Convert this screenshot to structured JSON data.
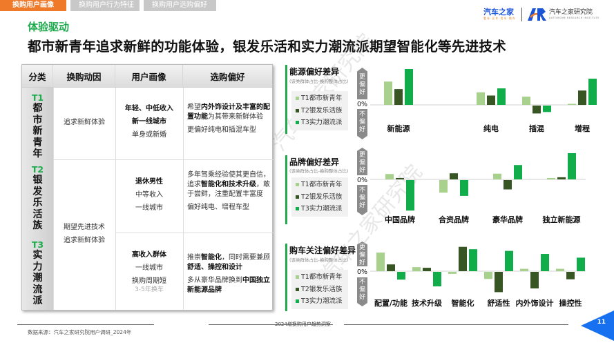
{
  "tabs": [
    {
      "label": "换购用户画像",
      "active": true
    },
    {
      "label": "换购用户行为特征",
      "active": false
    },
    {
      "label": "换购用户选购偏好",
      "active": false
    }
  ],
  "logos": {
    "autohome": {
      "main": "汽车之家",
      "sub": "看车·买车·用车·换车"
    },
    "institute": {
      "cn": "汽车之家研究院",
      "en": "AUTOHOME RESEARCH INSTITUTE"
    }
  },
  "kicker": "体验驱动",
  "headline": "都市新青年追求新鲜的功能体验，银发乐活和实力潮流派期望智能化等先进技术",
  "table": {
    "headers": [
      "分类",
      "换购动因",
      "用户画像",
      "选购偏好"
    ],
    "segments": [
      {
        "code": "T1",
        "name": "都市新青年"
      },
      {
        "code": "T2",
        "name": "银发乐活族"
      },
      {
        "code": "T3",
        "name": "实力潮流派"
      }
    ],
    "motives": {
      "t1": "追求新鲜体验",
      "t23_line1": "期望先进技术",
      "t23_line2": "追求新鲜体验"
    },
    "profiles": {
      "t1": [
        "年轻、中低收入",
        "新一线城市",
        "单身或新婚"
      ],
      "t2": [
        "退休男性",
        "中等收入",
        "一线城市"
      ],
      "t3": [
        "高收入群体",
        "一线城市",
        "换购周期短",
        "3-5年换车"
      ]
    },
    "preferences": {
      "t1": {
        "p1_a": "希望",
        "p1_b": "内外饰设计及丰富的配置功能",
        "p1_c": "为其带来新鲜体验",
        "p2": "更偏好纯电和插混车型"
      },
      "t2": {
        "p1_a": "多年驾乘经验使其更自信，追求",
        "p1_b": "智能化和技术升级",
        "p1_c": "，敢于尝鲜，注重配置丰富度",
        "p2": "偏好纯电、增程车型"
      },
      "t3": {
        "p1_a": "推崇",
        "p1_b": "智能化",
        "p1_c": "，同时需要兼顾",
        "p1_d": "舒适、操控和设计",
        "p2_a": "多从豪华品牌换到",
        "p2_b": "中国独立新能源品牌"
      }
    }
  },
  "legend": {
    "items": [
      "T1都市新青年",
      "T2银发乐活族",
      "T3实力潮流派"
    ],
    "colors": [
      "#a9d18e",
      "#375623",
      "#12ad4b"
    ]
  },
  "axis_labels": {
    "up": "更偏好",
    "down": "不偏好",
    "zero": "0%"
  },
  "chart_data": [
    {
      "type": "bar",
      "title": "能源偏好差异",
      "subtitle": "(该类群体占比-换购整体占比)",
      "categories": [
        "新能源",
        "纯电",
        "插混",
        "增程"
      ],
      "series": [
        {
          "name": "T1都市新青年",
          "values": [
            6.5,
            3.5,
            2.3,
            0.3
          ]
        },
        {
          "name": "T2银发乐活族",
          "values": [
            4.4,
            2.6,
            -2.2,
            4.0
          ]
        },
        {
          "name": "T3实力潮流派",
          "values": [
            10.0,
            4.6,
            -1.8,
            7.3
          ]
        }
      ],
      "ylabel": "更偏好 / 不偏好",
      "baseline": "0%",
      "grid": false,
      "legend_position": "left"
    },
    {
      "type": "bar",
      "title": "品牌偏好差异",
      "subtitle": "(该类群体占比-换购整体占比)",
      "categories": [
        "中国品牌",
        "合资品牌",
        "豪华品牌",
        "独立新能源"
      ],
      "series": [
        {
          "name": "T1都市新青年",
          "values": [
            1.5,
            -3.5,
            1.6,
            0.4
          ]
        },
        {
          "name": "T2银发乐活族",
          "values": [
            0.4,
            1.7,
            -2.6,
            0.6
          ]
        },
        {
          "name": "T3实力潮流派",
          "values": [
            -8.5,
            -4.4,
            4.0,
            8.0
          ]
        }
      ],
      "ylabel": "更偏好 / 不偏好",
      "baseline": "0%",
      "grid": false,
      "legend_position": "left"
    },
    {
      "type": "bar",
      "title": "购车关注偏好差异",
      "subtitle": "(该类群体占比-换购整体占比)",
      "categories": [
        "配置/功能",
        "技术升级",
        "智能化",
        "舒适性",
        "内外饰设计",
        "操控性"
      ],
      "series": [
        {
          "name": "T1都市新青年",
          "values": [
            5.5,
            1.2,
            -0.6,
            -2.1,
            0.7,
            0.7
          ]
        },
        {
          "name": "T2银发乐活族",
          "values": [
            2.0,
            1.0,
            7.2,
            -6.0,
            -4.9,
            -2.2
          ]
        },
        {
          "name": "T3实力潮流派",
          "values": [
            -2.3,
            -4.3,
            6.5,
            6.0,
            5.1,
            4.0
          ]
        }
      ],
      "ylabel": "更偏好 / 不偏好",
      "baseline": "0%",
      "grid": false,
      "legend_position": "left"
    }
  ],
  "footer": {
    "center": "2024增换购用户趋势洞察",
    "source": "数据来源：汽车之家研究院用户调研_2024年",
    "page": "11"
  },
  "watermark": "汽车之家研究院"
}
